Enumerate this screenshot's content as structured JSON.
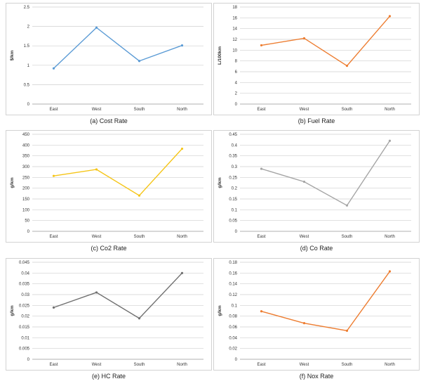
{
  "chart_data": [
    {
      "type": "line",
      "categories": [
        "East",
        "West",
        "South",
        "North"
      ],
      "series": [
        {
          "values": [
            0.92,
            1.97,
            1.11,
            1.51
          ]
        }
      ],
      "color": "#5b9bd5",
      "ylabel": "$/km",
      "ylim": [
        0,
        2.5
      ],
      "yticks": [
        "0",
        "0.5",
        "1",
        "1.5",
        "2",
        "2.5"
      ],
      "caption": "(a) Cost Rate",
      "grid": true
    },
    {
      "type": "line",
      "categories": [
        "East",
        "West",
        "South",
        "North"
      ],
      "series": [
        {
          "values": [
            10.9,
            12.2,
            7.1,
            16.3
          ]
        }
      ],
      "color": "#ed7d31",
      "ylabel": "L/100km",
      "ylim": [
        0,
        18
      ],
      "yticks": [
        "0",
        "2",
        "4",
        "6",
        "8",
        "10",
        "12",
        "14",
        "16",
        "18"
      ],
      "caption": "(b) Fuel Rate",
      "grid": true
    },
    {
      "type": "line",
      "categories": [
        "East",
        "West",
        "South",
        "North"
      ],
      "series": [
        {
          "values": [
            257,
            287,
            166,
            383
          ]
        }
      ],
      "color": "#f5c518",
      "ylabel": "g/km",
      "ylim": [
        0,
        450
      ],
      "yticks": [
        "0",
        "50",
        "100",
        "150",
        "200",
        "250",
        "300",
        "350",
        "400",
        "450"
      ],
      "caption": "(c) Co2 Rate",
      "grid": true
    },
    {
      "type": "line",
      "categories": [
        "East",
        "West",
        "South",
        "North"
      ],
      "series": [
        {
          "values": [
            0.29,
            0.23,
            0.12,
            0.42
          ]
        }
      ],
      "color": "#a5a5a5",
      "ylabel": "g/km",
      "ylim": [
        0,
        0.45
      ],
      "yticks": [
        "0",
        "0.05",
        "0.1",
        "0.15",
        "0.2",
        "0.25",
        "0.3",
        "0.35",
        "0.4",
        "0.45"
      ],
      "caption": "(d) Co Rate",
      "grid": true
    },
    {
      "type": "line",
      "categories": [
        "East",
        "West",
        "South",
        "North"
      ],
      "series": [
        {
          "values": [
            0.024,
            0.031,
            0.019,
            0.04
          ]
        }
      ],
      "color": "#707070",
      "ylabel": "g/km",
      "ylim": [
        0,
        0.045
      ],
      "yticks": [
        "0",
        "0.005",
        "0.01",
        "0.015",
        "0.02",
        "0.025",
        "0.03",
        "0.035",
        "0.04",
        "0.045"
      ],
      "caption": "(e) HC Rate",
      "grid": true
    },
    {
      "type": "line",
      "categories": [
        "East",
        "West",
        "South",
        "North"
      ],
      "series": [
        {
          "values": [
            0.089,
            0.067,
            0.053,
            0.163
          ]
        }
      ],
      "color": "#ed7d31",
      "ylabel": "g/km",
      "ylim": [
        0,
        0.18
      ],
      "yticks": [
        "0",
        "0.02",
        "0.04",
        "0.06",
        "0.08",
        "0.1",
        "0.12",
        "0.14",
        "0.16",
        "0.18"
      ],
      "caption": "(f) Nox Rate",
      "grid": true
    }
  ]
}
